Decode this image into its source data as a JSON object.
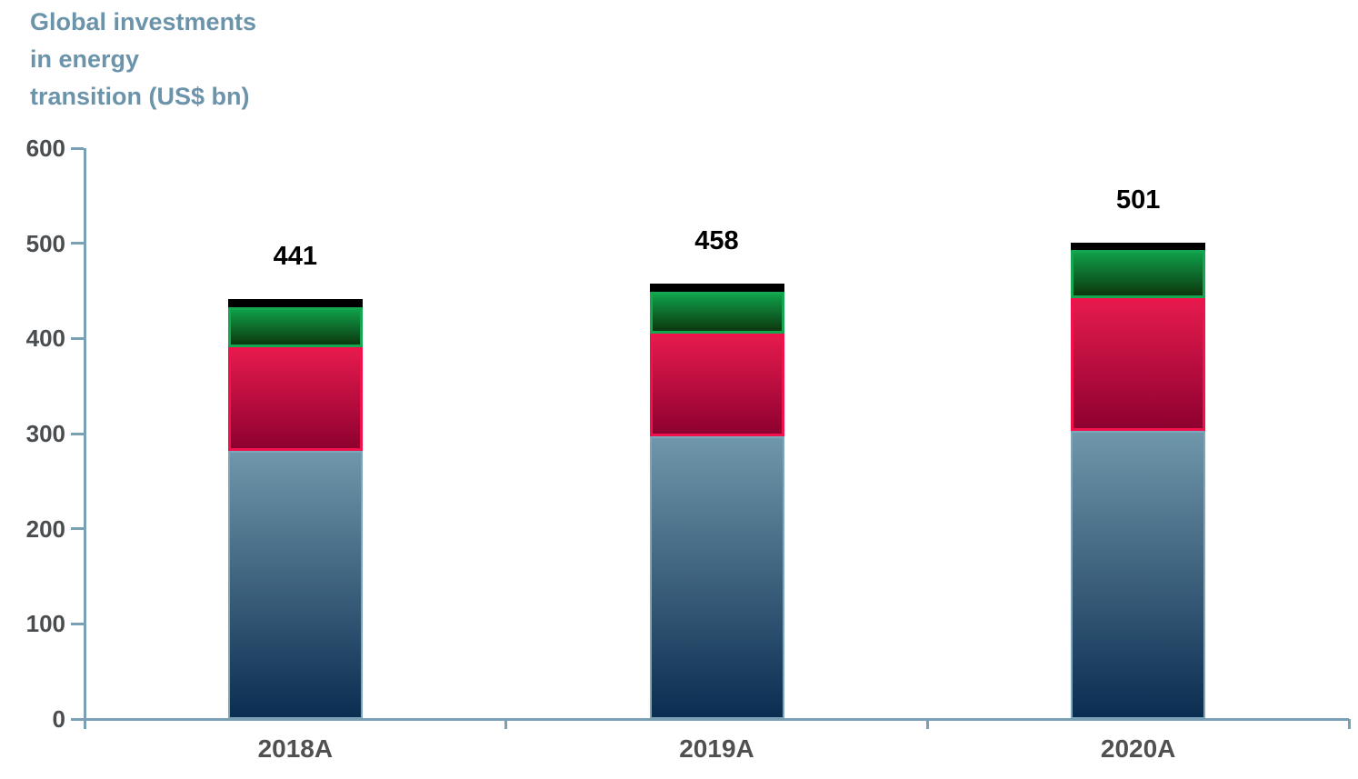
{
  "title_multiline": "Global investments\nin energy\ntransition (US$ bn)",
  "colors": {
    "background": "#ffffff",
    "title": "#6b93a9",
    "axis": "#7aa0b5",
    "tick_label": "#4a4d50",
    "category_label": "#505050",
    "value_label": "#000000"
  },
  "chart_data": {
    "type": "bar",
    "stacked": true,
    "title": "Global investments in energy transition (US$ bn)",
    "categories": [
      "2018A",
      "2019A",
      "2020A"
    ],
    "series": [
      {
        "name": "navy-blue-gradient-segment",
        "values": [
          282,
          297,
          303
        ],
        "color_top": "#6f97aa",
        "color_bottom": "#0b2d51",
        "border_color": "#7ea6ba",
        "border_px": 2
      },
      {
        "name": "crimson-red-gradient-segment",
        "values": [
          109,
          108,
          139
        ],
        "color_top": "#e51a4d",
        "color_bottom": "#8e0130",
        "border_color": "#f3114c",
        "border_px": 3
      },
      {
        "name": "green-gradient-segment",
        "values": [
          42,
          44,
          51
        ],
        "color_top": "#0f9e49",
        "color_bottom": "#0c380f",
        "border_color": "#14a750",
        "border_px": 3
      },
      {
        "name": "black-cap-segment",
        "values": [
          8,
          9,
          8
        ],
        "color_top": "#000000",
        "color_bottom": "#000000",
        "border_color": "#000000",
        "border_px": 0
      }
    ],
    "totals": [
      441,
      458,
      501
    ],
    "total_labels_shown": true,
    "ylim": [
      0,
      600
    ],
    "yticks": [
      0,
      100,
      200,
      300,
      400,
      500,
      600
    ],
    "grid": false,
    "legend": "none"
  }
}
